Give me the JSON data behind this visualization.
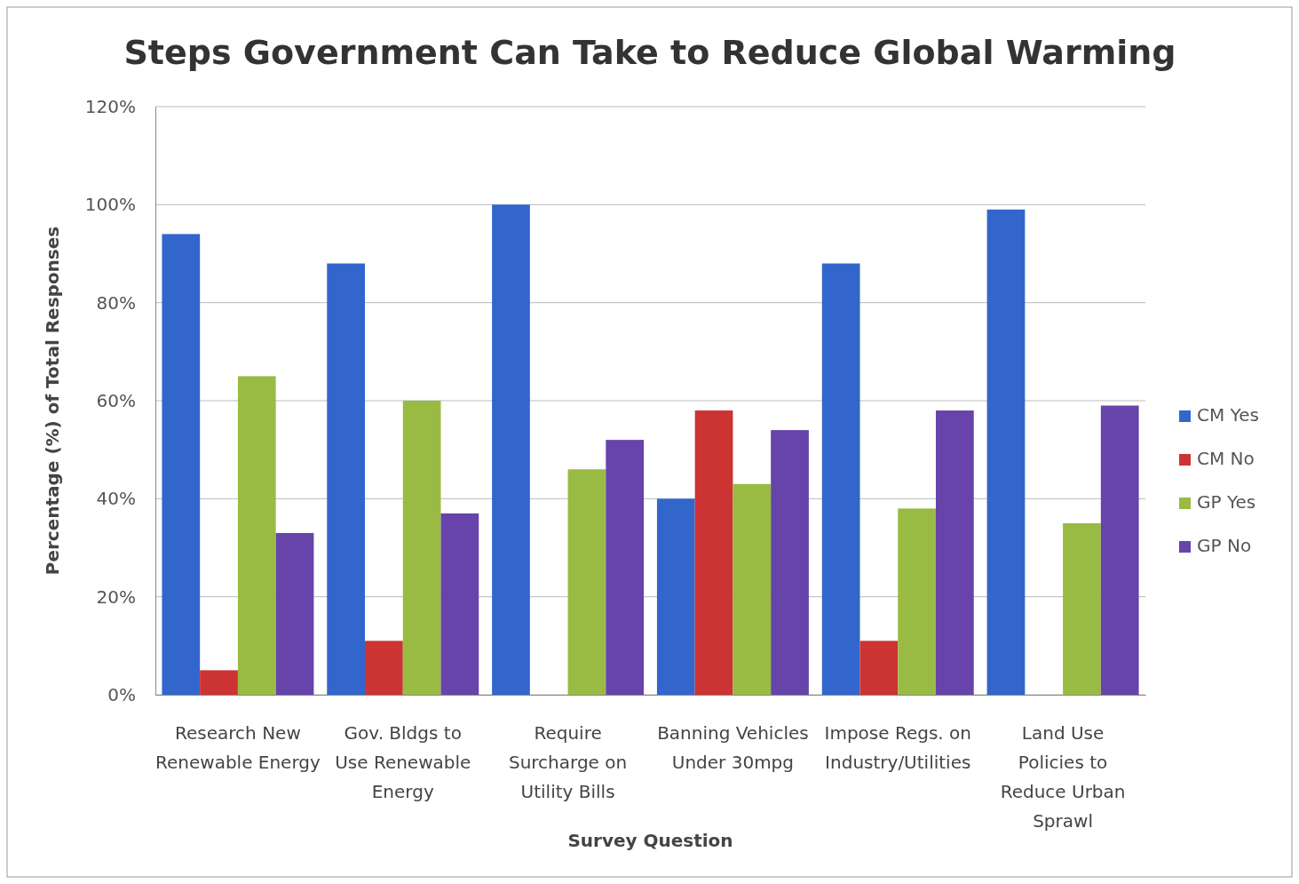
{
  "chart_data": {
    "type": "bar",
    "title": "Steps Government Can Take to Reduce Global Warming",
    "xlabel": "Survey Question",
    "ylabel": "Percentage (%) of Total Responses",
    "categories": [
      "Research New Renewable Energy",
      "Gov. Bldgs to Use Renewable Energy",
      "Require Surcharge on Utility Bills",
      "Banning Vehicles Under 30mpg",
      "Impose Regs. on Industry/Utilities",
      "Land Use Policies to Reduce Urban Sprawl"
    ],
    "series": [
      {
        "name": "CM Yes",
        "color": "#3366cc",
        "values": [
          94,
          88,
          100,
          40,
          88,
          99
        ]
      },
      {
        "name": "CM No",
        "color": "#cc3333",
        "values": [
          5,
          11,
          0,
          58,
          11,
          0
        ]
      },
      {
        "name": "GP Yes",
        "color": "#99bb44",
        "values": [
          65,
          60,
          46,
          43,
          38,
          35
        ]
      },
      {
        "name": "GP No",
        "color": "#6644aa",
        "values": [
          33,
          37,
          52,
          54,
          58,
          59
        ]
      }
    ],
    "ylim": [
      0,
      120
    ],
    "yticks": [
      {
        "value": 0,
        "label": "0%"
      },
      {
        "value": 20,
        "label": "20%"
      },
      {
        "value": 40,
        "label": "40%"
      },
      {
        "value": 60,
        "label": "60%"
      },
      {
        "value": 80,
        "label": "80%"
      },
      {
        "value": 100,
        "label": "100%"
      },
      {
        "value": 120,
        "label": "120%"
      }
    ],
    "grid": "y",
    "legend": "right"
  }
}
